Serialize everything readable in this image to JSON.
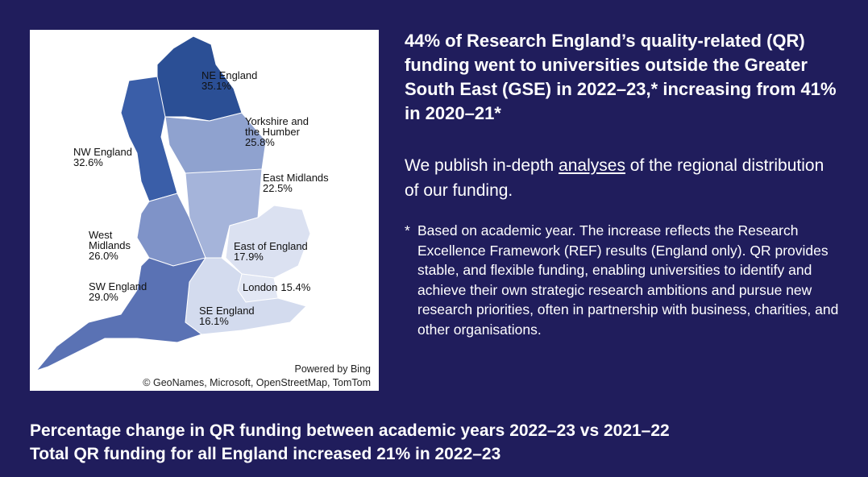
{
  "headline": "44% of Research England’s quality-related (QR) funding went to universities outside the Greater South East (GSE) in 2022–23,* increasing from 41% in 2020–21*",
  "intro": {
    "before": "We publish in-depth ",
    "link": "analyses",
    "after": " of the regional distribution of our funding."
  },
  "footnote": {
    "mark": "*",
    "text": "Based on academic year. The increase reflects the Research Excellence Framework (REF) results (England only). QR provides stable, and flexible funding, enabling universities to identify and achieve their own strategic research ambitions and pursue new research priorities, often in partnership with business, charities, and other organisations."
  },
  "map": {
    "regions": [
      {
        "name": "NE England",
        "value": "35.1%"
      },
      {
        "name": "Yorkshire and the Humber",
        "value": "25.8%"
      },
      {
        "name": "NW England",
        "value": "32.6%"
      },
      {
        "name": "East Midlands",
        "value": "22.5%"
      },
      {
        "name": "West Midlands",
        "value": "26.0%"
      },
      {
        "name": "East of England",
        "value": "17.9%"
      },
      {
        "name": "London",
        "value": "15.4%"
      },
      {
        "name": "SW England",
        "value": "29.0%"
      },
      {
        "name": "SE England",
        "value": "16.1%"
      }
    ],
    "powered": "Powered by Bing",
    "credits": "© GeoNames, Microsoft, OpenStreetMap, TomTom"
  },
  "footer": {
    "line1": "Percentage change in QR funding between academic years 2022–23 vs 2021–22",
    "line2": "Total QR funding for all England increased 21% in 2022–23"
  }
}
